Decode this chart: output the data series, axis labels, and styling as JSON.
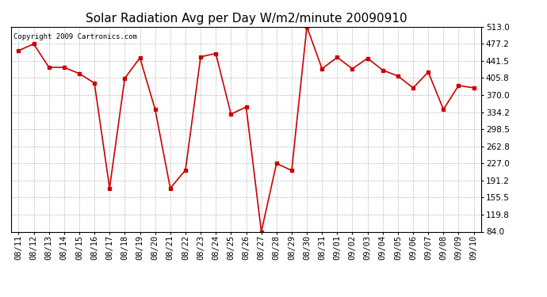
{
  "title": "Solar Radiation Avg per Day W/m2/minute 20090910",
  "copyright": "Copyright 2009 Cartronics.com",
  "dates": [
    "08/11",
    "08/12",
    "08/13",
    "08/14",
    "08/15",
    "08/16",
    "08/17",
    "08/18",
    "08/19",
    "08/20",
    "08/21",
    "08/22",
    "08/23",
    "08/24",
    "08/25",
    "08/26",
    "08/27",
    "08/28",
    "08/29",
    "08/30",
    "08/31",
    "09/01",
    "09/02",
    "09/03",
    "09/04",
    "09/05",
    "09/06",
    "09/07",
    "09/08",
    "09/09",
    "09/10"
  ],
  "values": [
    463,
    477,
    428,
    428,
    415,
    395,
    175,
    405,
    448,
    340,
    175,
    213,
    450,
    457,
    330,
    345,
    84,
    227,
    212,
    513,
    425,
    449,
    425,
    447,
    422,
    410,
    385,
    418,
    340,
    390,
    385
  ],
  "yticks": [
    84.0,
    119.8,
    155.5,
    191.2,
    227.0,
    262.8,
    298.5,
    334.2,
    370.0,
    405.8,
    441.5,
    477.2,
    513.0
  ],
  "line_color": "#cc0000",
  "marker_color": "#cc0000",
  "bg_color": "#ffffff",
  "grid_color": "#bbbbbb",
  "title_fontsize": 11,
  "copyright_fontsize": 6.5,
  "tick_fontsize": 7.5
}
